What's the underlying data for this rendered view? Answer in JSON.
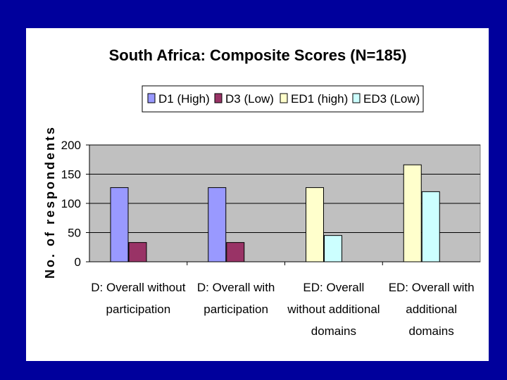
{
  "chart_data": {
    "type": "bar",
    "title": "South Africa: Composite Scores (N=185)",
    "xlabel": "",
    "ylabel": "No. of respondents",
    "ylim": [
      0,
      200
    ],
    "yticks": [
      "0",
      "50",
      "100",
      "150",
      "200"
    ],
    "grid": true,
    "legend_position": "top",
    "categories": [
      [
        "D: Overall without",
        "participation"
      ],
      [
        "D: Overall with",
        "participation"
      ],
      [
        "ED: Overall",
        "without additional",
        "domains"
      ],
      [
        "ED: Overall with",
        "additional",
        "domains"
      ]
    ],
    "series": [
      {
        "name": "D1 (High)",
        "color": "#9999ff",
        "values": [
          127,
          127,
          null,
          null
        ]
      },
      {
        "name": "D3 (Low)",
        "color": "#993366",
        "values": [
          33,
          33,
          null,
          null
        ]
      },
      {
        "name": "ED1 (high)",
        "color": "#ffffcc",
        "values": [
          null,
          null,
          127,
          166
        ]
      },
      {
        "name": "ED3 (Low)",
        "color": "#ccffff",
        "values": [
          null,
          null,
          45,
          120
        ]
      }
    ]
  }
}
